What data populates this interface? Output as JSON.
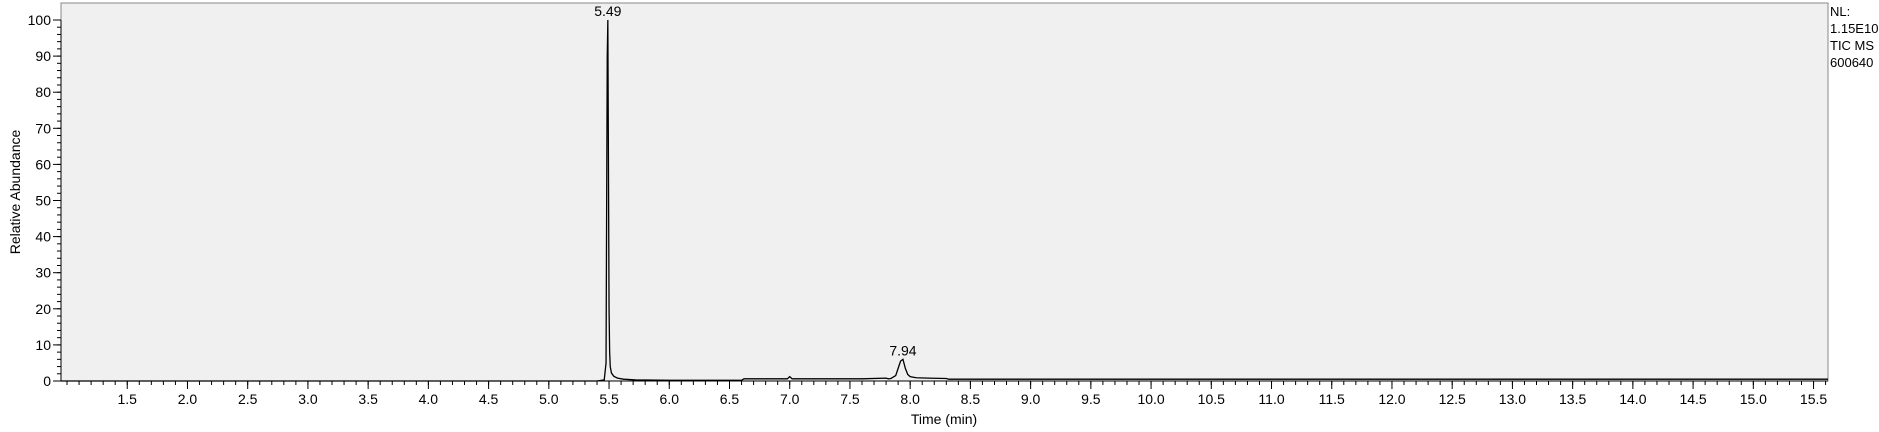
{
  "info_panel": {
    "nl_label": "NL:",
    "nl_value": "1.15E10",
    "filter": "TIC  MS",
    "sample": "600640"
  },
  "chart_data": {
    "type": "line",
    "title": "",
    "xlabel": "Time (min)",
    "ylabel": "Relative Abundance",
    "xlim": [
      0.95,
      15.62
    ],
    "ylim": [
      0,
      100
    ],
    "x_ticks": [
      1.5,
      2.0,
      2.5,
      3.0,
      3.5,
      4.0,
      4.5,
      5.0,
      5.5,
      6.0,
      6.5,
      7.0,
      7.5,
      8.0,
      8.5,
      9.0,
      9.5,
      10.0,
      10.5,
      11.0,
      11.5,
      12.0,
      12.5,
      13.0,
      13.5,
      14.0,
      14.5,
      15.0,
      15.5
    ],
    "x_tick_labels": [
      "1.5",
      "2.0",
      "2.5",
      "3.0",
      "3.5",
      "4.0",
      "4.5",
      "5.0",
      "5.5",
      "6.0",
      "6.5",
      "7.0",
      "7.5",
      "8.0",
      "8.5",
      "9.0",
      "9.5",
      "10.0",
      "10.5",
      "11.0",
      "11.5",
      "12.0",
      "12.5",
      "13.0",
      "13.5",
      "14.0",
      "14.5",
      "15.0",
      "15.5"
    ],
    "y_ticks": [
      0,
      10,
      20,
      30,
      40,
      50,
      60,
      70,
      80,
      90,
      100
    ],
    "y_tick_labels": [
      "0",
      "10",
      "20",
      "30",
      "40",
      "50",
      "60",
      "70",
      "80",
      "90",
      "100"
    ],
    "grid": false,
    "series": [
      {
        "x": [
          0.95,
          5.4,
          5.46,
          5.475,
          5.48,
          5.485,
          5.49,
          5.495,
          5.5,
          5.505,
          5.51,
          5.52,
          5.54,
          5.57,
          5.62,
          5.72,
          6.0,
          6.6,
          6.62,
          6.98,
          7.0,
          7.02,
          7.6,
          7.8,
          7.82,
          7.84,
          7.88,
          7.9,
          7.92,
          7.94,
          7.96,
          7.98,
          8.0,
          8.05,
          8.15,
          8.3,
          8.32,
          15.62
        ],
        "y": [
          0,
          0,
          0.3,
          5,
          48,
          90,
          100,
          60,
          20,
          8,
          4,
          2.2,
          1.3,
          0.8,
          0.5,
          0.3,
          0.2,
          0.2,
          0.6,
          0.6,
          1.2,
          0.6,
          0.6,
          0.8,
          0.6,
          0.7,
          1.5,
          3.5,
          5.5,
          6.0,
          3.5,
          1.8,
          1.2,
          0.9,
          0.8,
          0.7,
          0.5,
          0.5
        ]
      }
    ],
    "annotations": [
      {
        "x": 5.49,
        "y": 100,
        "text": "5.49"
      },
      {
        "x": 7.94,
        "y": 6.0,
        "text": "7.94"
      }
    ]
  }
}
